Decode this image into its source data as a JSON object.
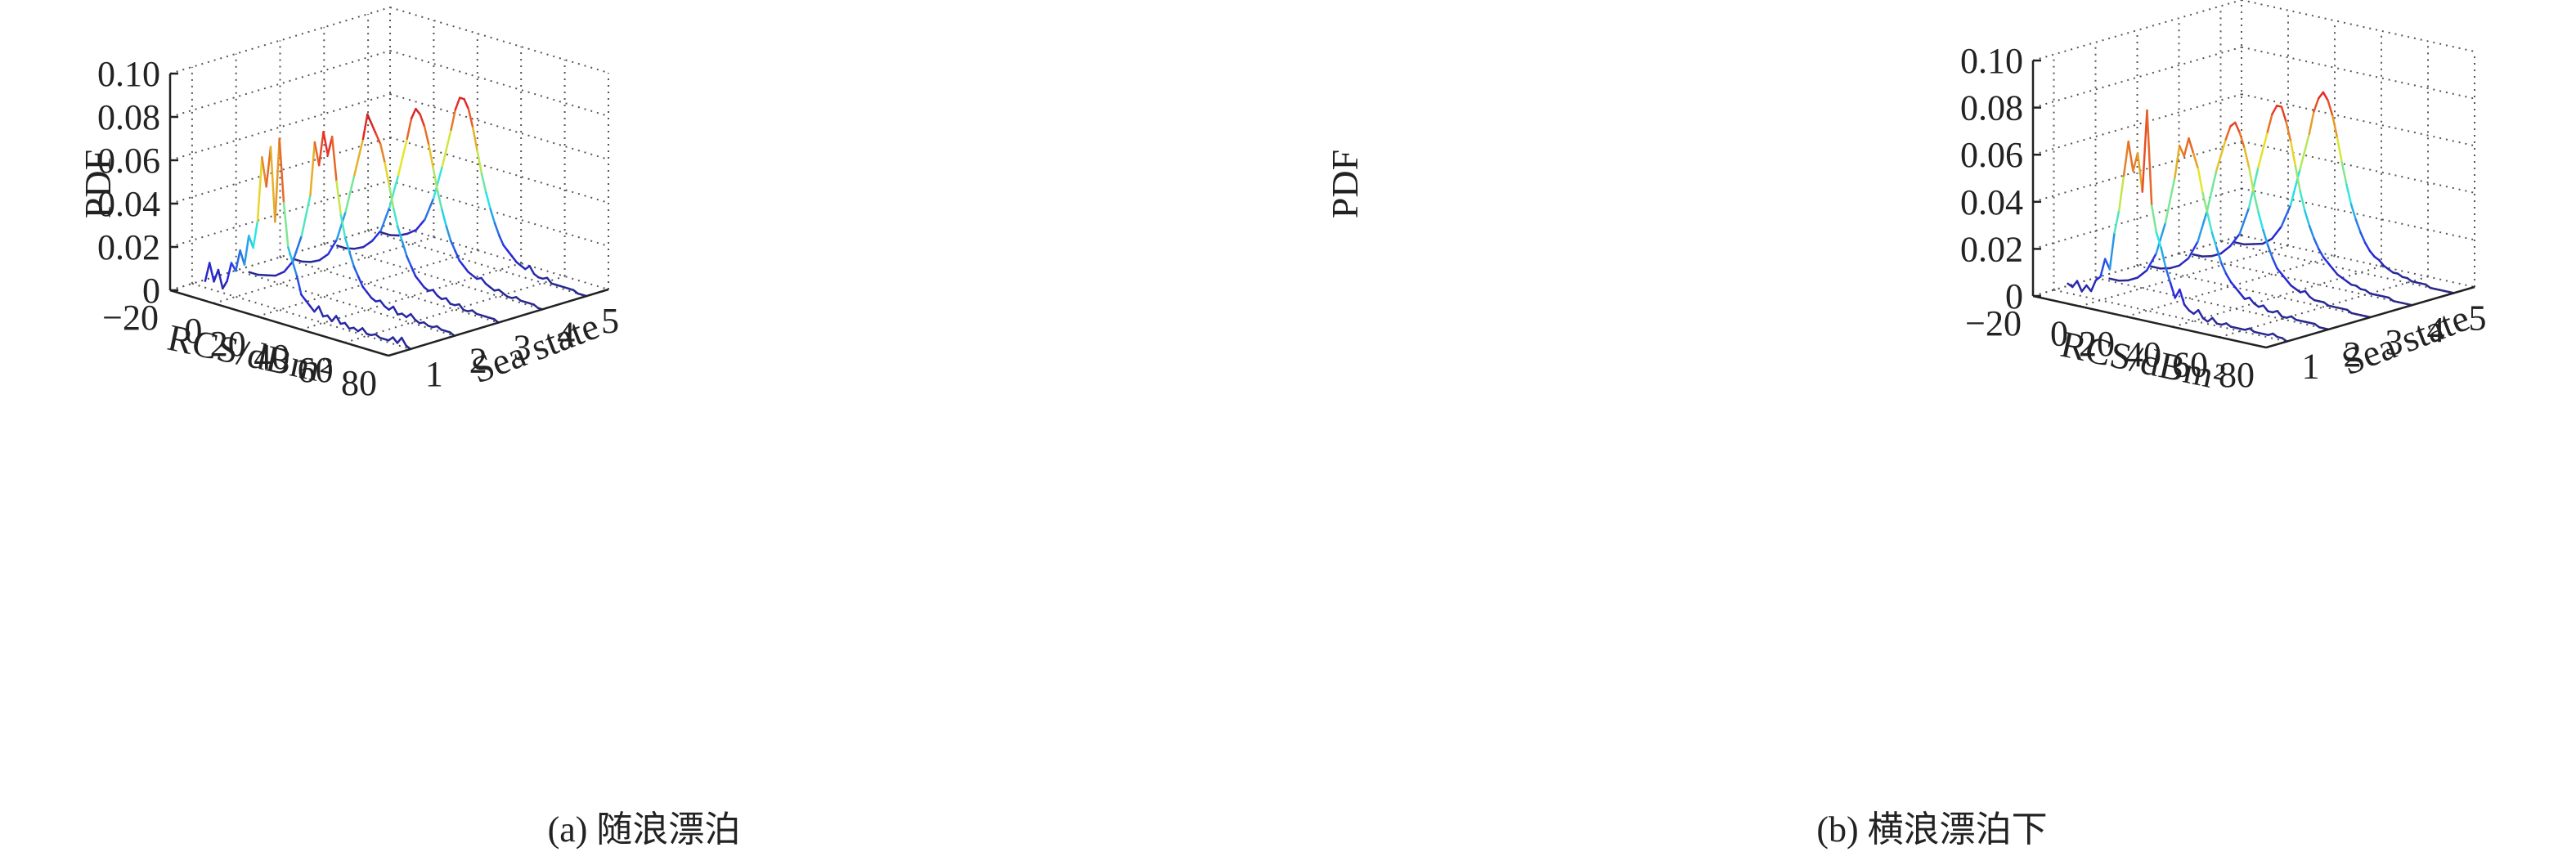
{
  "figure": {
    "captions": [
      "(a) 随浪漂泊",
      "(b) 横浪漂泊下"
    ]
  },
  "chart_data": [
    {
      "type": "line",
      "subtype": "3d-waterfall",
      "caption": "(a) 随浪漂泊",
      "xlabel": "RCS/dBm²",
      "ylabel": "Sea state",
      "zlabel": "PDF",
      "x_ticks": [
        "−20",
        "0",
        "20",
        "40",
        "60",
        "80"
      ],
      "y_ticks": [
        "1",
        "2",
        "3",
        "4",
        "5"
      ],
      "z_ticks": [
        "0",
        "0.02",
        "0.04",
        "0.06",
        "0.08",
        "0.10"
      ],
      "xlim": [
        -20,
        80
      ],
      "ylim": [
        0.5,
        5.5
      ],
      "zlim": [
        0,
        0.1
      ],
      "grid": true,
      "colormap": "jet",
      "series": [
        {
          "sea_state": 1,
          "x": [
            -14,
            -12,
            -10,
            -8,
            -6,
            -4,
            -2,
            0,
            2,
            4,
            6,
            8,
            10,
            12,
            14,
            16,
            18,
            20,
            22,
            24,
            26,
            28,
            30,
            32,
            34,
            36,
            38,
            40,
            42,
            44,
            46,
            48,
            50,
            52,
            54,
            56,
            58,
            60,
            62,
            64,
            66,
            68,
            70,
            72,
            74,
            76,
            78,
            80
          ],
          "y": [
            0.003,
            0.012,
            0.004,
            0.01,
            0.002,
            0.006,
            0.015,
            0.012,
            0.022,
            0.016,
            0.03,
            0.025,
            0.038,
            0.068,
            0.055,
            0.074,
            0.04,
            0.079,
            0.05,
            0.03,
            0.024,
            0.018,
            0.01,
            0.008,
            0.006,
            0.004,
            0.007,
            0.003,
            0.004,
            0.002,
            0.005,
            0.002,
            0.003,
            0.001,
            0.002,
            0.001,
            0.003,
            0.001,
            0.001,
            0.002,
            0.001,
            0.001,
            0.001,
            0.003,
            0.001,
            0.004,
            0.001,
            0.0
          ]
        },
        {
          "sea_state": 2,
          "x": [
            -14,
            -10,
            -6,
            -2,
            2,
            6,
            10,
            14,
            16,
            18,
            20,
            22,
            24,
            26,
            28,
            30,
            32,
            34,
            36,
            38,
            40,
            42,
            44,
            46,
            48,
            50,
            52,
            54,
            56,
            58,
            60,
            62,
            64,
            66,
            68,
            70,
            72,
            74,
            76,
            78,
            80
          ],
          "y": [
            0.001,
            0.001,
            0.002,
            0.003,
            0.006,
            0.012,
            0.025,
            0.045,
            0.07,
            0.06,
            0.076,
            0.066,
            0.075,
            0.055,
            0.04,
            0.03,
            0.024,
            0.018,
            0.014,
            0.01,
            0.008,
            0.006,
            0.005,
            0.006,
            0.004,
            0.003,
            0.005,
            0.002,
            0.003,
            0.002,
            0.004,
            0.002,
            0.001,
            0.002,
            0.001,
            0.001,
            0.002,
            0.001,
            0.001,
            0.001,
            0.0
          ]
        },
        {
          "sea_state": 3,
          "x": [
            -14,
            -10,
            -6,
            -2,
            2,
            6,
            10,
            14,
            18,
            20,
            22,
            24,
            26,
            28,
            30,
            32,
            34,
            36,
            38,
            40,
            42,
            44,
            46,
            48,
            50,
            52,
            54,
            56,
            58,
            60,
            62,
            64,
            66,
            68,
            70,
            72,
            74,
            76,
            78,
            80
          ],
          "y": [
            0.001,
            0.001,
            0.002,
            0.004,
            0.008,
            0.016,
            0.03,
            0.048,
            0.066,
            0.078,
            0.074,
            0.07,
            0.066,
            0.058,
            0.048,
            0.038,
            0.03,
            0.024,
            0.018,
            0.014,
            0.01,
            0.008,
            0.006,
            0.005,
            0.006,
            0.004,
            0.003,
            0.004,
            0.002,
            0.002,
            0.003,
            0.001,
            0.001,
            0.002,
            0.001,
            0.001,
            0.001,
            0.001,
            0.001,
            0.0
          ]
        },
        {
          "sea_state": 4,
          "x": [
            -14,
            -10,
            -6,
            -2,
            2,
            6,
            10,
            14,
            18,
            20,
            22,
            24,
            26,
            28,
            30,
            32,
            34,
            36,
            38,
            40,
            42,
            44,
            46,
            48,
            50,
            52,
            54,
            56,
            58,
            60,
            62,
            64,
            66,
            68,
            70,
            72,
            74,
            76,
            78,
            80
          ],
          "y": [
            0.001,
            0.001,
            0.002,
            0.004,
            0.008,
            0.014,
            0.026,
            0.042,
            0.06,
            0.07,
            0.075,
            0.073,
            0.068,
            0.06,
            0.05,
            0.04,
            0.032,
            0.025,
            0.019,
            0.015,
            0.011,
            0.009,
            0.007,
            0.006,
            0.005,
            0.006,
            0.004,
            0.003,
            0.002,
            0.003,
            0.002,
            0.001,
            0.001,
            0.002,
            0.001,
            0.001,
            0.001,
            0.001,
            0.0,
            0.0
          ]
        },
        {
          "sea_state": 5,
          "x": [
            -14,
            -10,
            -6,
            -2,
            2,
            6,
            10,
            14,
            18,
            20,
            22,
            24,
            26,
            28,
            30,
            32,
            34,
            36,
            38,
            40,
            42,
            44,
            46,
            48,
            50,
            52,
            54,
            56,
            58,
            60,
            62,
            64,
            66,
            68,
            70,
            72,
            74,
            76,
            78,
            80
          ],
          "y": [
            0.001,
            0.001,
            0.002,
            0.004,
            0.007,
            0.013,
            0.024,
            0.04,
            0.058,
            0.068,
            0.074,
            0.074,
            0.07,
            0.062,
            0.052,
            0.042,
            0.034,
            0.027,
            0.021,
            0.016,
            0.012,
            0.01,
            0.008,
            0.006,
            0.005,
            0.004,
            0.006,
            0.003,
            0.002,
            0.002,
            0.003,
            0.001,
            0.001,
            0.001,
            0.001,
            0.001,
            0.001,
            0.0,
            0.0,
            0.0
          ]
        }
      ]
    },
    {
      "type": "line",
      "subtype": "3d-waterfall",
      "caption": "(b) 横浪漂泊下",
      "xlabel": "RCS/dBm²",
      "ylabel": "Sea state",
      "zlabel": "PDF",
      "x_ticks": [
        "−20",
        "0",
        "20",
        "40",
        "60",
        "80"
      ],
      "y_ticks": [
        "1",
        "2",
        "3",
        "4",
        "5"
      ],
      "z_ticks": [
        "0",
        "0.02",
        "0.04",
        "0.06",
        "0.08",
        "0.10"
      ],
      "xlim": [
        -20,
        80
      ],
      "ylim": [
        0.5,
        5.5
      ],
      "zlim": [
        0,
        0.1
      ],
      "grid": true,
      "colormap": "jet",
      "series": [
        {
          "sea_state": 1,
          "x": [
            -14,
            -12,
            -10,
            -8,
            -6,
            -4,
            -2,
            0,
            2,
            4,
            6,
            8,
            10,
            12,
            14,
            16,
            18,
            20,
            22,
            24,
            26,
            28,
            30,
            32,
            34,
            36,
            38,
            40,
            42,
            44,
            46,
            48,
            50,
            52,
            54,
            56,
            58,
            60,
            62,
            64,
            66,
            68,
            70,
            72,
            74,
            76,
            78,
            80
          ],
          "y": [
            0.004,
            0.003,
            0.006,
            0.002,
            0.005,
            0.003,
            0.008,
            0.01,
            0.018,
            0.014,
            0.03,
            0.04,
            0.055,
            0.07,
            0.058,
            0.066,
            0.05,
            0.085,
            0.045,
            0.034,
            0.028,
            0.02,
            0.014,
            0.008,
            0.012,
            0.006,
            0.004,
            0.003,
            0.005,
            0.002,
            0.001,
            0.003,
            0.001,
            0.001,
            0.002,
            0.001,
            0.001,
            0.001,
            0.001,
            0.002,
            0.001,
            0.001,
            0.001,
            0.001,
            0.002,
            0.001,
            0.001,
            0.0
          ]
        },
        {
          "sea_state": 2,
          "x": [
            -14,
            -10,
            -6,
            -2,
            2,
            6,
            10,
            14,
            16,
            18,
            20,
            22,
            24,
            26,
            28,
            30,
            32,
            34,
            36,
            38,
            40,
            42,
            44,
            46,
            48,
            50,
            52,
            54,
            56,
            58,
            60,
            62,
            64,
            66,
            68,
            70,
            72,
            74,
            76,
            78,
            80
          ],
          "y": [
            0.001,
            0.001,
            0.002,
            0.004,
            0.008,
            0.016,
            0.03,
            0.05,
            0.064,
            0.06,
            0.068,
            0.062,
            0.056,
            0.046,
            0.038,
            0.03,
            0.024,
            0.018,
            0.014,
            0.011,
            0.009,
            0.007,
            0.005,
            0.006,
            0.004,
            0.003,
            0.004,
            0.002,
            0.002,
            0.003,
            0.001,
            0.001,
            0.002,
            0.001,
            0.001,
            0.001,
            0.001,
            0.001,
            0.0,
            0.0,
            0.0
          ]
        },
        {
          "sea_state": 3,
          "x": [
            -14,
            -10,
            -6,
            -2,
            2,
            6,
            10,
            14,
            18,
            20,
            22,
            24,
            26,
            28,
            30,
            32,
            34,
            36,
            38,
            40,
            42,
            44,
            46,
            48,
            50,
            52,
            54,
            56,
            58,
            60,
            62,
            64,
            66,
            68,
            70,
            72,
            74,
            76,
            78,
            80
          ],
          "y": [
            0.001,
            0.001,
            0.002,
            0.004,
            0.008,
            0.016,
            0.03,
            0.048,
            0.062,
            0.068,
            0.07,
            0.066,
            0.06,
            0.052,
            0.042,
            0.034,
            0.027,
            0.021,
            0.016,
            0.012,
            0.01,
            0.008,
            0.006,
            0.005,
            0.004,
            0.005,
            0.003,
            0.002,
            0.002,
            0.002,
            0.001,
            0.001,
            0.001,
            0.001,
            0.001,
            0.0,
            0.0,
            0.0,
            0.0,
            0.0
          ]
        },
        {
          "sea_state": 4,
          "x": [
            -14,
            -10,
            -6,
            -2,
            2,
            6,
            10,
            14,
            18,
            20,
            22,
            24,
            26,
            28,
            30,
            32,
            34,
            36,
            38,
            40,
            42,
            44,
            46,
            48,
            50,
            52,
            54,
            56,
            58,
            60,
            62,
            64,
            66,
            68,
            70,
            72,
            74,
            76,
            78,
            80
          ],
          "y": [
            0.001,
            0.001,
            0.002,
            0.004,
            0.008,
            0.014,
            0.026,
            0.044,
            0.06,
            0.068,
            0.072,
            0.072,
            0.066,
            0.058,
            0.048,
            0.038,
            0.03,
            0.024,
            0.019,
            0.015,
            0.012,
            0.01,
            0.008,
            0.006,
            0.005,
            0.004,
            0.003,
            0.003,
            0.002,
            0.002,
            0.001,
            0.001,
            0.001,
            0.001,
            0.001,
            0.0,
            0.0,
            0.0,
            0.0,
            0.0
          ]
        },
        {
          "sea_state": 5,
          "x": [
            -14,
            -10,
            -6,
            -2,
            2,
            6,
            10,
            14,
            18,
            20,
            22,
            24,
            26,
            28,
            30,
            32,
            34,
            36,
            38,
            40,
            42,
            44,
            46,
            48,
            50,
            52,
            54,
            56,
            58,
            60,
            62,
            64,
            66,
            68,
            70,
            72,
            74,
            76,
            78,
            80
          ],
          "y": [
            0.001,
            0.001,
            0.002,
            0.003,
            0.006,
            0.012,
            0.022,
            0.038,
            0.054,
            0.064,
            0.07,
            0.073,
            0.07,
            0.064,
            0.055,
            0.045,
            0.036,
            0.028,
            0.022,
            0.017,
            0.013,
            0.01,
            0.008,
            0.007,
            0.005,
            0.004,
            0.003,
            0.003,
            0.002,
            0.002,
            0.001,
            0.001,
            0.001,
            0.001,
            0.0,
            0.0,
            0.0,
            0.0,
            0.0,
            0.0
          ]
        }
      ]
    }
  ]
}
